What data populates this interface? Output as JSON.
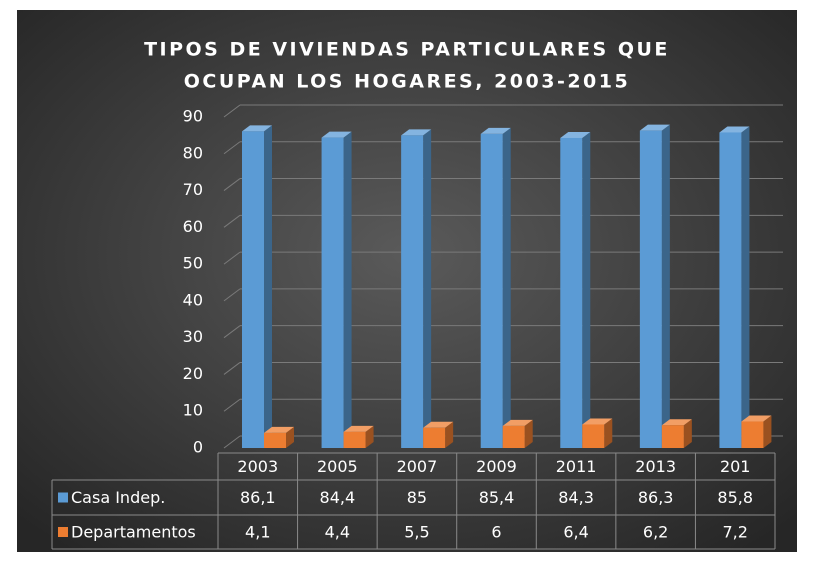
{
  "chart_data": {
    "type": "bar3d",
    "title": [
      "TIPOS DE  VIVIENDAS PARTICULARES QUE",
      "OCUPAN LOS HOGARES, 2003-2015"
    ],
    "categories": [
      "2003",
      "2005",
      "2007",
      "2009",
      "2011",
      "2013",
      "201"
    ],
    "series": [
      {
        "name": "Casa Indep.",
        "color": "#5b9bd5",
        "values": [
          86.1,
          84.4,
          85,
          85.4,
          84.3,
          86.3,
          85.8
        ],
        "value_labels": [
          "86,1",
          "84,4",
          "85",
          "85,4",
          "84,3",
          "86,3",
          "85,8"
        ]
      },
      {
        "name": "Departamentos",
        "color": "#ed7d31",
        "values": [
          4.1,
          4.4,
          5.5,
          6,
          6.4,
          6.2,
          7.2
        ],
        "value_labels": [
          "4,1",
          "4,4",
          "5,5",
          "6",
          "6,4",
          "6,2",
          "7,2"
        ]
      }
    ],
    "ylim": [
      0,
      90
    ],
    "yticks": [
      0,
      10,
      20,
      30,
      40,
      50,
      60,
      70,
      80,
      90
    ],
    "grid": true,
    "data_table": true
  }
}
